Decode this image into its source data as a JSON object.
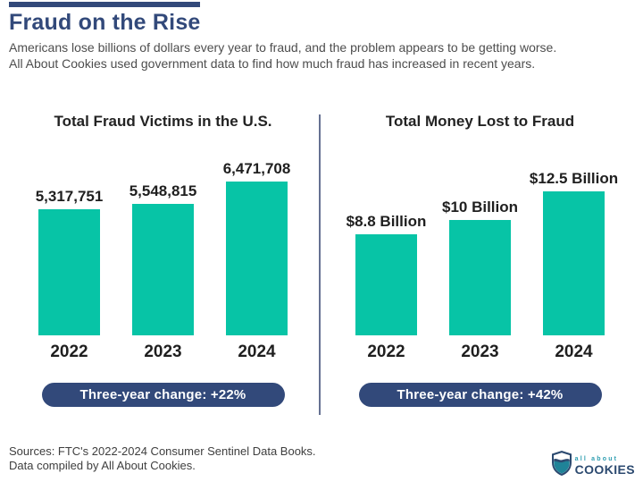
{
  "header": {
    "title": "Fraud on the Rise",
    "subtitle_line1": "Americans lose billions of dollars every year to fraud, and the problem appears to be getting worse.",
    "subtitle_line2": "All About Cookies used government data to find how much fraud has increased in recent years."
  },
  "colors": {
    "navy": "#32497A",
    "teal": "#07C4A6",
    "divider": "#667192",
    "body_text": "#4D4D4D",
    "label_text": "#1F1F1F"
  },
  "chart_data": [
    {
      "type": "bar",
      "title": "Total Fraud Victims in the U.S.",
      "categories": [
        "2022",
        "2023",
        "2024"
      ],
      "values": [
        5317751,
        5548815,
        6471708
      ],
      "value_labels": [
        "5,317,751",
        "5,548,815",
        "6,471,708"
      ],
      "ylim": [
        0,
        6471708
      ],
      "grid": false,
      "legend": "none",
      "badge": "Three-year change: +22%"
    },
    {
      "type": "bar",
      "title": "Total Money Lost to Fraud",
      "categories": [
        "2022",
        "2023",
        "2024"
      ],
      "values": [
        8.8,
        10,
        12.5
      ],
      "value_labels": [
        "$8.8 Billion",
        "$10 Billion",
        "$12.5 Billion"
      ],
      "ylim": [
        0,
        12.5
      ],
      "grid": false,
      "legend": "none",
      "badge": "Three-year change: +42%"
    }
  ],
  "footer": {
    "sources_line1": "Sources: FTC's 2022-2024 Consumer Sentinel Data Books.",
    "sources_line2": "Data compiled by All About Cookies.",
    "logo": {
      "top": "all about",
      "bottom": "COOKIES"
    }
  }
}
